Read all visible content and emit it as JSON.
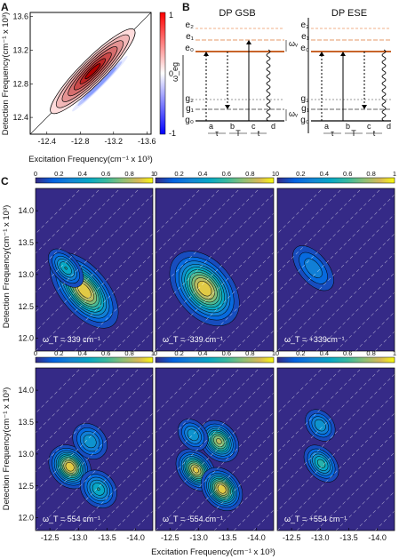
{
  "panel_labels": [
    "A",
    "B",
    "C"
  ],
  "chart_data": [
    {
      "type": "heatmap",
      "panel": "A",
      "xlabel": "Excitation Frequency(cm⁻¹ x 10³)",
      "ylabel": "Detection Frequency(cm⁻¹ x 10³)",
      "xticks": [
        "-12.4",
        "-12.8",
        "-13.2",
        "-13.6"
      ],
      "yticks": [
        "13.6",
        "13.2",
        "12.8",
        "12.4"
      ],
      "xlim": [
        -12.2,
        -13.65
      ],
      "ylim": [
        12.2,
        13.65
      ],
      "colorbar": {
        "label": "ω_eg",
        "ticks": [
          "1",
          "0",
          "-1"
        ],
        "range": [
          -1,
          1
        ]
      },
      "peak": {
        "x": -12.95,
        "y": 12.95
      }
    },
    {
      "type": "heatmap",
      "panel": "C",
      "xlabel": "Excitation Frequency(cm⁻¹ x 10³)",
      "ylabel": "Detection Frequency(cm⁻¹ x 10³)",
      "xticks": [
        "-12.5",
        "-13.0",
        "-13.5",
        "-14.0"
      ],
      "yticks": [
        "14.0",
        "13.5",
        "13.0",
        "12.5",
        "12.0"
      ],
      "xlim": [
        -12.25,
        -14.3
      ],
      "ylim": [
        11.8,
        14.35
      ],
      "colorbar_ticks": [
        "0",
        "0.2",
        "0.4",
        "0.6",
        "0.8",
        "1"
      ],
      "colorbar_range": [
        0,
        1
      ],
      "panels": [
        {
          "label": "ω_T = 339 cm⁻¹",
          "peaks": [
            {
              "x": -13.1,
              "y": 12.75,
              "a": 1.0,
              "sx": 0.22,
              "sy": 0.38
            },
            {
              "x": -12.78,
              "y": 13.1,
              "a": 0.55,
              "sx": 0.14,
              "sy": 0.22
            }
          ]
        },
        {
          "label": "ω_T = -339 cm⁻¹",
          "peaks": [
            {
              "x": -13.1,
              "y": 12.78,
              "a": 1.0,
              "sx": 0.26,
              "sy": 0.36
            }
          ]
        },
        {
          "label": "ω_T = +339cm⁻¹",
          "peaks": [
            {
              "x": -12.88,
              "y": 13.1,
              "a": 0.35,
              "sx": 0.18,
              "sy": 0.3
            }
          ]
        },
        {
          "label": "ω_T = 554 cm⁻¹",
          "peaks": [
            {
              "x": -12.85,
              "y": 12.8,
              "a": 1.0,
              "sx": 0.18,
              "sy": 0.2
            },
            {
              "x": -13.35,
              "y": 12.45,
              "a": 0.55,
              "sx": 0.18,
              "sy": 0.2
            },
            {
              "x": -13.2,
              "y": 13.2,
              "a": 0.45,
              "sx": 0.18,
              "sy": 0.2
            }
          ]
        },
        {
          "label": "ω_T = -554 cm⁻¹",
          "peaks": [
            {
              "x": -12.95,
              "y": 12.75,
              "a": 0.95,
              "sx": 0.16,
              "sy": 0.2
            },
            {
              "x": -13.4,
              "y": 12.45,
              "a": 1.0,
              "sx": 0.17,
              "sy": 0.2
            },
            {
              "x": -13.35,
              "y": 13.2,
              "a": 0.85,
              "sx": 0.17,
              "sy": 0.2
            },
            {
              "x": -12.9,
              "y": 13.3,
              "a": 0.45,
              "sx": 0.15,
              "sy": 0.18
            }
          ]
        },
        {
          "label": "ω_T = +554 cm⁻¹",
          "peaks": [
            {
              "x": -13.02,
              "y": 12.85,
              "a": 0.6,
              "sx": 0.15,
              "sy": 0.2
            },
            {
              "x": -13.0,
              "y": 13.45,
              "a": 0.45,
              "sx": 0.15,
              "sy": 0.18
            }
          ]
        }
      ]
    }
  ],
  "diagram": {
    "headers": [
      "DP GSB",
      "DP ESE"
    ],
    "upper_levels": [
      "e₂",
      "e₁",
      "e₀"
    ],
    "lower_levels": [
      "g₂",
      "g₁",
      "g₀"
    ],
    "omega_v": "ωᵥ",
    "time_letters": [
      "a",
      "b",
      "c",
      "d"
    ],
    "time_labels": [
      "τ",
      "T",
      "t"
    ]
  }
}
